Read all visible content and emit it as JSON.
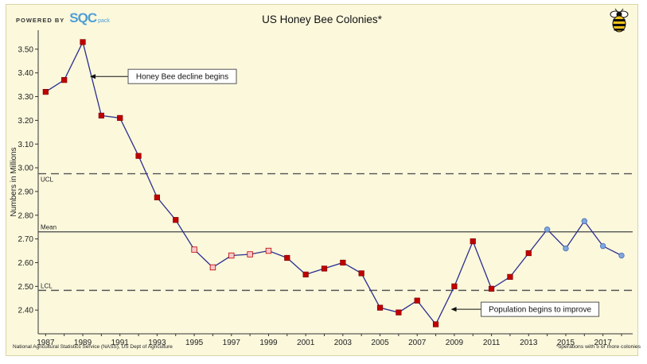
{
  "header": {
    "powered_by": "POWERED BY",
    "logo_text": "SQC",
    "logo_sub": "pack"
  },
  "source_note": "National Agricultural Statistics Service (NASS), US Dept of Agriculture",
  "footnote": "*operations with 5 or more colonies",
  "colors": {
    "background": "#fbf8dc",
    "line": "#2b2f8f",
    "marker_out": "#c00000",
    "marker_in": "#f4c9c9",
    "marker_recent": "#7ea7dd",
    "control_line": "#555555"
  },
  "chart_data": {
    "type": "line",
    "title": "US Honey Bee Colonies*",
    "xlabel": "",
    "ylabel": "Numbers in Millions",
    "x": [
      1987,
      1988,
      1989,
      1990,
      1991,
      1992,
      1993,
      1994,
      1995,
      1996,
      1997,
      1998,
      1999,
      2000,
      2001,
      2002,
      2003,
      2004,
      2005,
      2006,
      2007,
      2008,
      2009,
      2010,
      2011,
      2012,
      2013,
      2014,
      2015,
      2016,
      2017,
      2018
    ],
    "values": [
      3.32,
      3.37,
      3.53,
      3.22,
      3.21,
      3.05,
      2.875,
      2.78,
      2.655,
      2.58,
      2.63,
      2.635,
      2.65,
      2.62,
      2.55,
      2.575,
      2.6,
      2.555,
      2.41,
      2.39,
      2.44,
      2.34,
      2.5,
      2.69,
      2.49,
      2.54,
      2.64,
      2.74,
      2.66,
      2.775,
      2.67,
      2.63
    ],
    "marker_types": [
      "out",
      "out",
      "out",
      "out",
      "out",
      "out",
      "out",
      "out",
      "in",
      "in",
      "in",
      "in",
      "in",
      "out",
      "out",
      "out",
      "out",
      "out",
      "out",
      "out",
      "out",
      "out",
      "out",
      "out",
      "out",
      "out",
      "out",
      "recent",
      "recent",
      "recent",
      "recent",
      "recent"
    ],
    "xticks": [
      "1987",
      "1989",
      "1991",
      "1993",
      "1995",
      "1997",
      "1999",
      "2001",
      "2003",
      "2005",
      "2007",
      "2009",
      "2011",
      "2013",
      "2015",
      "2017"
    ],
    "yticks": [
      "2.40",
      "2.50",
      "2.60",
      "2.70",
      "2.80",
      "2.90",
      "3.00",
      "3.10",
      "3.20",
      "3.30",
      "3.40",
      "3.50"
    ],
    "ylim": [
      2.3,
      3.58
    ],
    "xlim": [
      1986.6,
      2018.6
    ],
    "control_lines": [
      {
        "label": "UCL",
        "value": 2.975,
        "style": "dashed"
      },
      {
        "label": "Mean",
        "value": 2.73,
        "style": "solid"
      },
      {
        "label": "LCL",
        "value": 2.483,
        "style": "dashed"
      }
    ],
    "annotations": [
      {
        "text": "Honey Bee decline begins",
        "year": 1989,
        "value": 3.385
      },
      {
        "text": "Population begins to improve",
        "year": 2008.9,
        "value": 2.4
      }
    ],
    "grid": false,
    "legend": "none"
  }
}
